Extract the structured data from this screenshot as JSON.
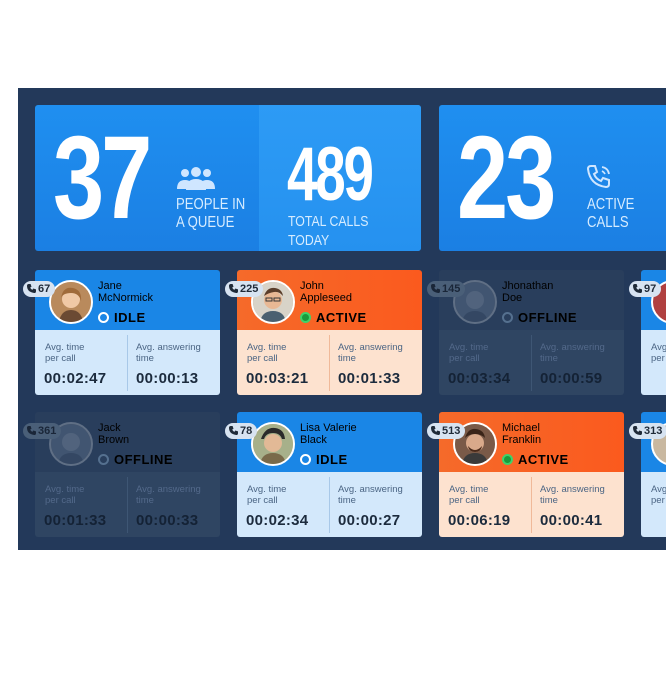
{
  "stats": [
    {
      "value": "37",
      "label_line1": "PEOPLE IN",
      "label_line2": "A QUEUE",
      "icon": "people-icon"
    },
    {
      "value": "489",
      "label": "TOTAL CALLS TODAY"
    },
    {
      "value": "23",
      "label_line1": "ACTIVE",
      "label_line2": "CALLS",
      "icon": "phone-ringing-icon"
    }
  ],
  "metric_labels": {
    "time_line1": "Avg. time",
    "time_line2": "per call",
    "ans_line1": "Avg. answering",
    "ans_line2": "time"
  },
  "agents": [
    {
      "ext": "67",
      "first": "Jane",
      "last": "McNormick",
      "status": "IDLE",
      "avg_time": "00:02:47",
      "avg_answer": "00:00:13"
    },
    {
      "ext": "225",
      "first": "John",
      "last": "Appleseed",
      "status": "ACTIVE",
      "avg_time": "00:03:21",
      "avg_answer": "00:01:33"
    },
    {
      "ext": "145",
      "first": "Jhonathan",
      "last": "Doe",
      "status": "OFFLINE",
      "avg_time": "00:03:34",
      "avg_answer": "00:00:59"
    },
    {
      "ext": "97",
      "first": "",
      "last": "",
      "status": "",
      "avg_time": "",
      "avg_answer": ""
    },
    {
      "ext": "361",
      "first": "Jack",
      "last": "Brown",
      "status": "OFFLINE",
      "avg_time": "00:01:33",
      "avg_answer": "00:00:33"
    },
    {
      "ext": "78",
      "first": "Lisa Valerie",
      "last": "Black",
      "status": "IDLE",
      "avg_time": "00:02:34",
      "avg_answer": "00:00:27"
    },
    {
      "ext": "513",
      "first": "Michael",
      "last": "Franklin",
      "status": "ACTIVE",
      "avg_time": "00:06:19",
      "avg_answer": "00:00:41"
    },
    {
      "ext": "313",
      "first": "",
      "last": "",
      "status": "",
      "avg_time": "",
      "avg_answer": ""
    }
  ],
  "colors": {
    "background": "#23395a",
    "blue": "#1a86e6",
    "orange": "#f56a2a",
    "active_dot": "#3ed26a"
  }
}
